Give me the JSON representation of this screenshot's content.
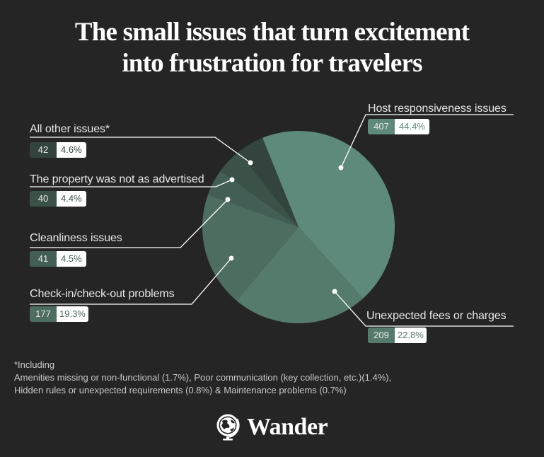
{
  "header": {
    "title_line1": "The small issues that turn excitement",
    "title_line2": "into frustration for travelers"
  },
  "chart_data": {
    "type": "pie",
    "title": "The small issues that turn excitement into frustration for travelers",
    "categories": [
      "Host responsiveness issues",
      "Unexpected fees or charges",
      "Check-in/check-out problems",
      "Cleanliness issues",
      "The property was not as advertised",
      "All other issues*"
    ],
    "values": [
      407,
      209,
      177,
      41,
      40,
      42
    ],
    "percentages": [
      44.4,
      22.8,
      19.3,
      4.5,
      4.4,
      4.6
    ],
    "colors": [
      "#5e8a7b",
      "#557b6d",
      "#4d6d61",
      "#435f55",
      "#3b5249",
      "#33443e"
    ],
    "legend_position": "callouts"
  },
  "labels": {
    "host": {
      "name": "Host responsiveness issues",
      "count": "407",
      "pct": "44.4%"
    },
    "fees": {
      "name": "Unexpected fees or charges",
      "count": "209",
      "pct": "22.8%"
    },
    "checkin": {
      "name": "Check-in/check-out problems",
      "count": "177",
      "pct": "19.3%"
    },
    "clean": {
      "name": "Cleanliness issues",
      "count": "41",
      "pct": "4.5%"
    },
    "property": {
      "name": "The property was not as advertised",
      "count": "40",
      "pct": "4.4%"
    },
    "other": {
      "name": "All other issues*",
      "count": "42",
      "pct": "4.6%"
    }
  },
  "footnote": {
    "line1": "*Including",
    "line2": "Amenities missing or non-functional (1.7%), Poor communication (key collection, etc.)(1.4%),",
    "line3": "Hidden rules or unexpected requirements (0.8%) & Maintenance problems (0.7%)"
  },
  "brand": {
    "name": "Wander",
    "icon": "globe-icon"
  }
}
